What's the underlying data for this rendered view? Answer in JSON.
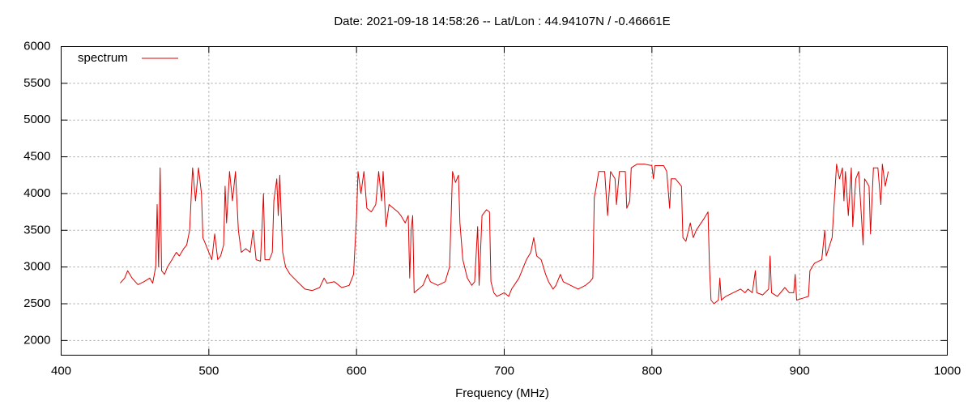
{
  "chart_data": {
    "type": "line",
    "title": "Date: 2021-09-18 14:58:26  --  Lat/Lon : 44.94107N / -0.46661E",
    "x_label": "Frequency (MHz)",
    "x": [
      440,
      443,
      445,
      448,
      452,
      456,
      460,
      462,
      464,
      465,
      466,
      467,
      468,
      470,
      472,
      475,
      478,
      480,
      483,
      485,
      487,
      489,
      491,
      493,
      495,
      496,
      498,
      500,
      502,
      504,
      506,
      508,
      510,
      511,
      512,
      514,
      516,
      518,
      520,
      522,
      525,
      528,
      530,
      532,
      535,
      537,
      538,
      541,
      543,
      544,
      546,
      547,
      548,
      549,
      550,
      552,
      555,
      560,
      565,
      570,
      575,
      578,
      580,
      585,
      590,
      595,
      598,
      600,
      601,
      603,
      605,
      607,
      610,
      613,
      615,
      617,
      618,
      620,
      622,
      625,
      628,
      630,
      633,
      635,
      636,
      637,
      638,
      639,
      642,
      645,
      648,
      650,
      655,
      660,
      663,
      665,
      667,
      669,
      670,
      672,
      675,
      678,
      680,
      682,
      683,
      685,
      688,
      690,
      691,
      693,
      695,
      700,
      703,
      705,
      710,
      715,
      718,
      720,
      722,
      725,
      728,
      730,
      733,
      735,
      738,
      740,
      745,
      750,
      755,
      758,
      760,
      761,
      762,
      764,
      768,
      770,
      772,
      775,
      776,
      778,
      782,
      783,
      785,
      786,
      790,
      795,
      800,
      801,
      802,
      808,
      810,
      812,
      813,
      816,
      820,
      821,
      823,
      826,
      828,
      830,
      835,
      838,
      839,
      840,
      842,
      845,
      846,
      847,
      850,
      855,
      860,
      863,
      865,
      868,
      870,
      871,
      875,
      879,
      880,
      881,
      885,
      890,
      893,
      896,
      897,
      898,
      903,
      906,
      907,
      910,
      915,
      917,
      918,
      922,
      925,
      927,
      929,
      930,
      931,
      933,
      935,
      936,
      938,
      940,
      943,
      944,
      947,
      948,
      950,
      953,
      955,
      956,
      958,
      960
    ],
    "series": [
      {
        "name": "spectrum",
        "color": "#e00000",
        "values": [
          2780,
          2850,
          2950,
          2850,
          2760,
          2800,
          2850,
          2780,
          3000,
          3850,
          3000,
          4350,
          2950,
          2900,
          3000,
          3100,
          3200,
          3150,
          3250,
          3300,
          3500,
          4350,
          3900,
          4350,
          4000,
          3400,
          3300,
          3200,
          3100,
          3450,
          3100,
          3150,
          3300,
          4100,
          3600,
          4300,
          3900,
          4300,
          3500,
          3200,
          3250,
          3200,
          3500,
          3100,
          3080,
          4000,
          3100,
          3100,
          3200,
          3900,
          4200,
          3700,
          4250,
          3700,
          3200,
          3000,
          2900,
          2800,
          2700,
          2680,
          2720,
          2850,
          2780,
          2800,
          2720,
          2750,
          2900,
          3700,
          4300,
          4000,
          4300,
          3800,
          3750,
          3850,
          4300,
          3900,
          4300,
          3550,
          3850,
          3800,
          3750,
          3700,
          3600,
          3700,
          2850,
          3500,
          3700,
          2650,
          2700,
          2750,
          2900,
          2800,
          2750,
          2800,
          3000,
          4300,
          4150,
          4250,
          3600,
          3100,
          2850,
          2750,
          2800,
          3550,
          2750,
          3700,
          3780,
          3750,
          2800,
          2650,
          2600,
          2650,
          2600,
          2700,
          2850,
          3100,
          3200,
          3400,
          3150,
          3100,
          2900,
          2800,
          2700,
          2750,
          2900,
          2800,
          2750,
          2700,
          2750,
          2800,
          2850,
          3950,
          4050,
          4300,
          4300,
          3700,
          4300,
          4200,
          3850,
          4300,
          4300,
          3800,
          3900,
          4350,
          4400,
          4400,
          4380,
          4200,
          4380,
          4380,
          4300,
          3800,
          4200,
          4200,
          4100,
          3400,
          3350,
          3600,
          3400,
          3500,
          3650,
          3750,
          3000,
          2550,
          2500,
          2550,
          2850,
          2550,
          2600,
          2650,
          2700,
          2650,
          2700,
          2650,
          2950,
          2650,
          2620,
          2700,
          3150,
          2650,
          2600,
          2720,
          2650,
          2650,
          2900,
          2550,
          2580,
          2600,
          2950,
          3050,
          3100,
          3500,
          3150,
          3400,
          4400,
          4200,
          4350,
          3900,
          4300,
          3700,
          4350,
          3550,
          4200,
          4300,
          3300,
          4200,
          4100,
          3450,
          4350,
          4350,
          3850,
          4400,
          4100,
          4300
        ]
      }
    ],
    "xlim": [
      400,
      1000
    ],
    "xticks": [
      400,
      500,
      600,
      700,
      800,
      900,
      1000
    ],
    "ylim": [
      1800,
      6000
    ],
    "yticks": [
      2000,
      2500,
      3000,
      3500,
      4000,
      4500,
      5000,
      5500,
      6000
    ],
    "grid": true,
    "legend": "top-left"
  }
}
